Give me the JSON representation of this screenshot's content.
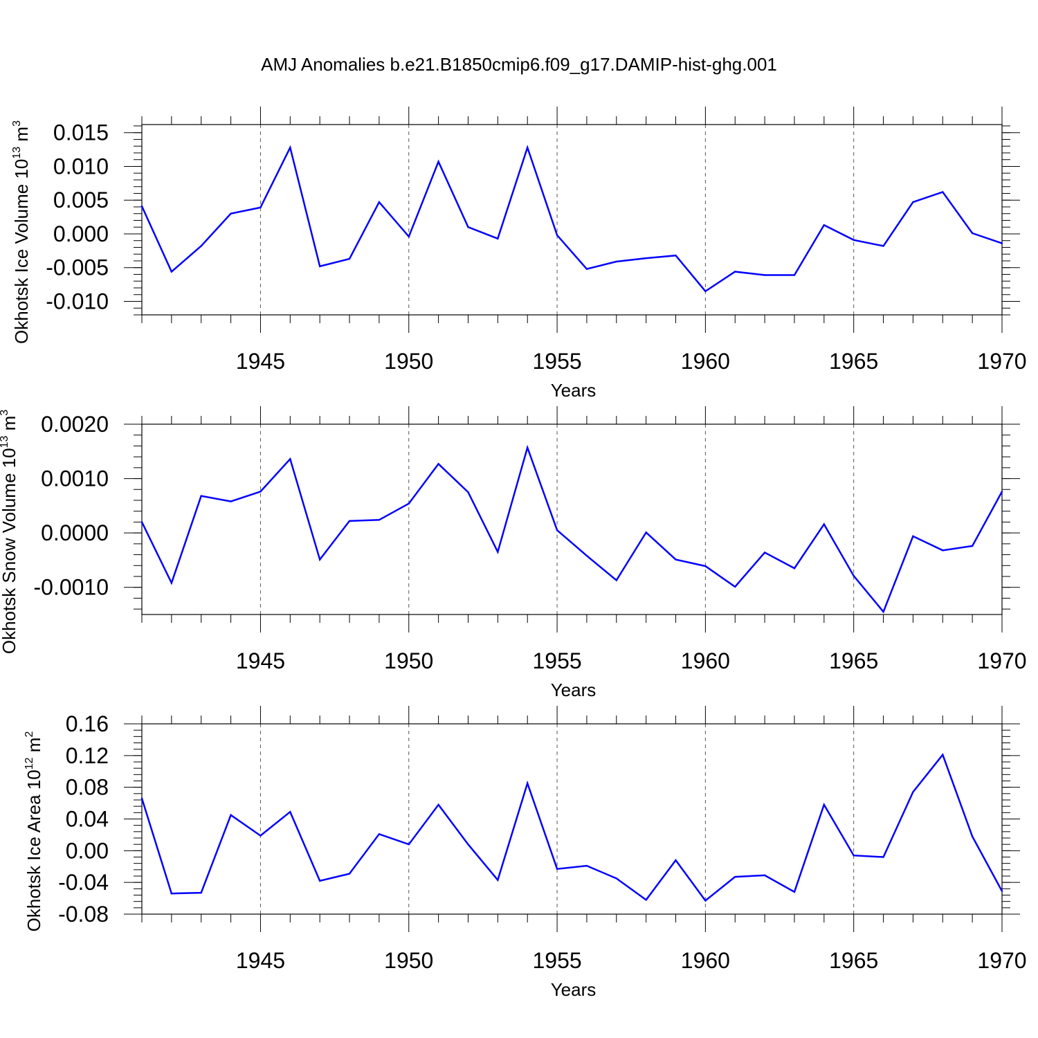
{
  "title": "AMJ Anomalies b.e21.B1850cmip6.f09_g17.DAMIP-hist-ghg.001",
  "colors": {
    "series": "#0000ff",
    "axis": "#000000",
    "grid": "#555555"
  },
  "chart_data": [
    {
      "type": "line",
      "title": "AMJ Anomalies b.e21.B1850cmip6.f09_g17.DAMIP-hist-ghg.001",
      "xlabel": "Years",
      "ylabel": "Okhotsk Ice Volume 10",
      "ylabel_exp": "13",
      "ylabel_unit": "m",
      "ylabel_unit_exp": "3",
      "xlim": [
        1941,
        1970
      ],
      "ylim": [
        -0.012,
        0.0162
      ],
      "xticks": [
        "1945",
        "1950",
        "1955",
        "1960",
        "1965",
        "1970"
      ],
      "yticks": [
        "0.015",
        "0.010",
        "0.005",
        "0.000",
        "-0.005",
        "-0.010"
      ],
      "grid": "vertical dashed at major x ticks",
      "series": [
        {
          "name": "Ice Volume",
          "x": [
            1941,
            1942,
            1943,
            1944,
            1945,
            1946,
            1947,
            1948,
            1949,
            1950,
            1951,
            1952,
            1953,
            1954,
            1955,
            1956,
            1957,
            1958,
            1959,
            1960,
            1961,
            1962,
            1963,
            1964,
            1965,
            1966,
            1967,
            1968,
            1969,
            1970
          ],
          "values": [
            0.0041,
            -0.0056,
            -0.0018,
            0.003,
            0.0039,
            0.0128,
            -0.0048,
            -0.0037,
            0.0047,
            -0.0004,
            0.0107,
            0.001,
            -0.0007,
            0.0128,
            -0.0002,
            -0.0052,
            -0.0041,
            -0.0036,
            -0.0032,
            -0.0085,
            -0.0056,
            -0.0061,
            -0.0061,
            0.0013,
            -0.0009,
            -0.0018,
            0.0047,
            0.0062,
            0.0001,
            -0.0014
          ]
        }
      ]
    },
    {
      "type": "line",
      "xlabel": "Years",
      "ylabel": "Okhotsk Snow Volume 10",
      "ylabel_exp": "13",
      "ylabel_unit": "m",
      "ylabel_unit_exp": "3",
      "xlim": [
        1941,
        1970
      ],
      "ylim": [
        -0.0015,
        0.002
      ],
      "xticks": [
        "1945",
        "1950",
        "1955",
        "1960",
        "1965",
        "1970"
      ],
      "yticks": [
        "0.0020",
        "0.0010",
        "0.0000",
        "-0.0010"
      ],
      "grid": "vertical dashed at major x ticks",
      "series": [
        {
          "name": "Snow Volume",
          "x": [
            1941,
            1942,
            1943,
            1944,
            1945,
            1946,
            1947,
            1948,
            1949,
            1950,
            1951,
            1952,
            1953,
            1954,
            1955,
            1956,
            1957,
            1958,
            1959,
            1960,
            1961,
            1962,
            1963,
            1964,
            1965,
            1966,
            1967,
            1968,
            1969,
            1970
          ],
          "values": [
            0.0002,
            -0.00092,
            0.00068,
            0.00058,
            0.00076,
            0.00136,
            -0.00049,
            0.00022,
            0.00024,
            0.00054,
            0.00127,
            0.00075,
            -0.00035,
            0.00157,
            5e-05,
            -0.00042,
            -0.00087,
            1e-05,
            -0.00049,
            -0.00061,
            -0.00099,
            -0.00036,
            -0.00065,
            0.00016,
            -0.00079,
            -0.00145,
            -6e-05,
            -0.00032,
            -0.00024,
            0.00076
          ]
        }
      ]
    },
    {
      "type": "line",
      "xlabel": "Years",
      "ylabel": "Okhotsk Ice Area 10",
      "ylabel_exp": "12",
      "ylabel_unit": "m",
      "ylabel_unit_exp": "2",
      "xlim": [
        1941,
        1970
      ],
      "ylim": [
        -0.08,
        0.16
      ],
      "xticks": [
        "1945",
        "1950",
        "1955",
        "1960",
        "1965",
        "1970"
      ],
      "yticks": [
        "0.16",
        "0.12",
        "0.08",
        "0.04",
        "0.00",
        "-0.04",
        "-0.08"
      ],
      "grid": "vertical dashed at major x ticks",
      "series": [
        {
          "name": "Ice Area",
          "x": [
            1941,
            1942,
            1943,
            1944,
            1945,
            1946,
            1947,
            1948,
            1949,
            1950,
            1951,
            1952,
            1953,
            1954,
            1955,
            1956,
            1957,
            1958,
            1959,
            1960,
            1961,
            1962,
            1963,
            1964,
            1965,
            1966,
            1967,
            1968,
            1969,
            1970
          ],
          "values": [
            0.066,
            -0.054,
            -0.053,
            0.045,
            0.019,
            0.049,
            -0.038,
            -0.029,
            0.021,
            0.008,
            0.058,
            0.008,
            -0.037,
            0.085,
            -0.023,
            -0.019,
            -0.035,
            -0.062,
            -0.012,
            -0.063,
            -0.033,
            -0.031,
            -0.052,
            0.058,
            -0.006,
            -0.008,
            0.074,
            0.121,
            0.018,
            -0.051
          ]
        }
      ]
    }
  ]
}
